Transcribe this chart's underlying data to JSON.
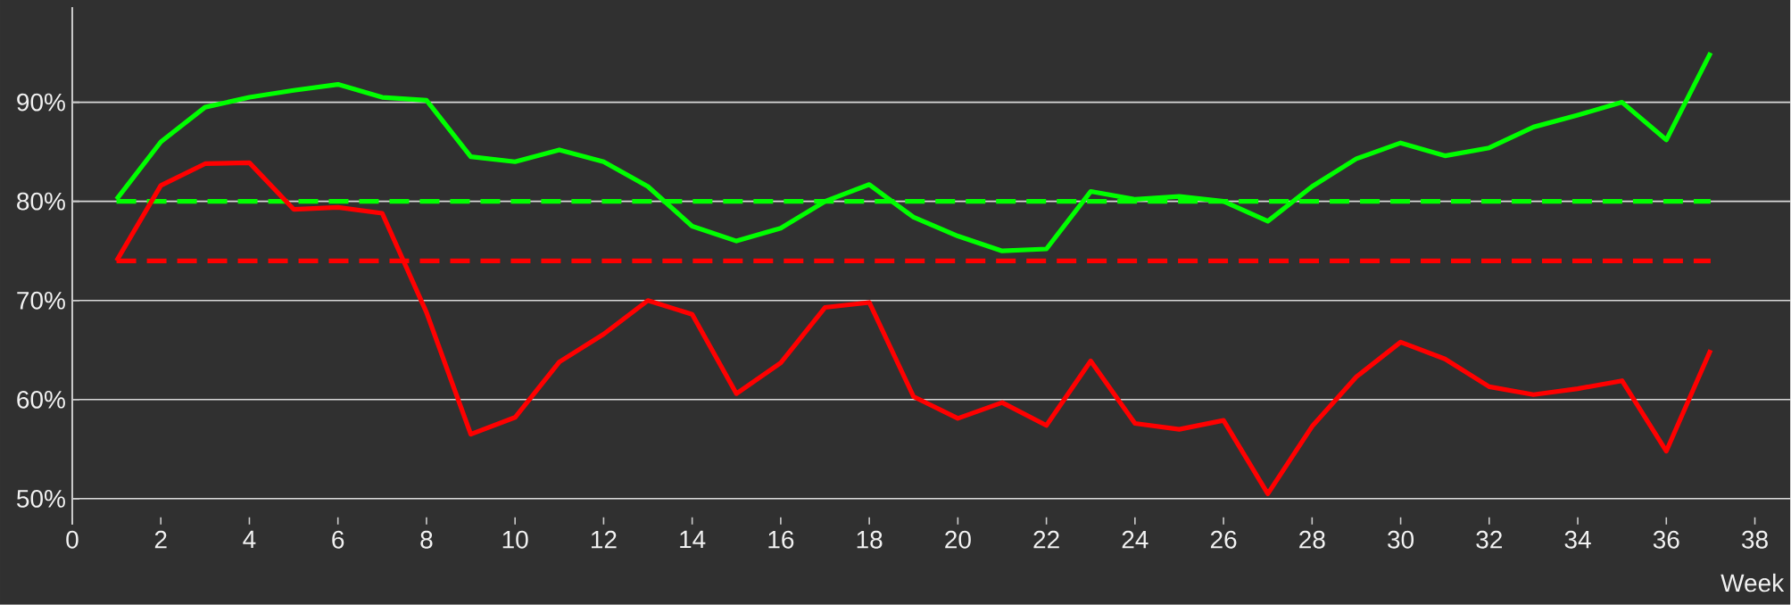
{
  "chart_data": {
    "type": "line",
    "xlabel": "Week",
    "x": [
      1,
      2,
      3,
      4,
      5,
      6,
      7,
      8,
      9,
      10,
      11,
      12,
      13,
      14,
      15,
      16,
      17,
      18,
      19,
      20,
      21,
      22,
      23,
      24,
      25,
      26,
      27,
      28,
      29,
      30,
      31,
      32,
      33,
      34,
      35,
      36,
      37
    ],
    "series": [
      {
        "color": "#00ff00",
        "values": [
          80.2,
          86,
          89.5,
          90.5,
          91.2,
          91.8,
          90.5,
          90.2,
          84.5,
          84,
          85.2,
          84,
          81.5,
          77.5,
          76,
          77.3,
          80,
          81.7,
          78.4,
          76.5,
          75,
          75.2,
          81,
          80.2,
          80.5,
          80,
          78,
          81.5,
          84.3,
          85.9,
          84.6,
          85.4,
          87.5,
          88.7,
          90,
          86.2,
          95
        ]
      },
      {
        "color": "#ff0000",
        "values": [
          74,
          81.6,
          83.8,
          83.9,
          79.2,
          79.4,
          78.8,
          68.8,
          56.5,
          58.2,
          63.8,
          66.6,
          70,
          68.6,
          60.6,
          63.7,
          69.3,
          69.8,
          60.3,
          58.1,
          59.7,
          57.4,
          63.9,
          57.6,
          57,
          57.9,
          50.5,
          57.3,
          62.3,
          65.8,
          64.1,
          61.3,
          60.5,
          61.1,
          61.9,
          54.8,
          65
        ]
      }
    ],
    "ref_lines": [
      {
        "axis": "y",
        "value": 80,
        "color": "#00ff00",
        "line_style": "dashed"
      },
      {
        "axis": "y",
        "value": 74,
        "color": "#ff0000",
        "line_style": "dashed"
      }
    ],
    "xlim": [
      0,
      38.8
    ],
    "ylim": [
      47.4,
      99.6
    ],
    "xticks": [
      0,
      2,
      4,
      6,
      8,
      10,
      12,
      14,
      16,
      18,
      20,
      22,
      24,
      26,
      28,
      30,
      32,
      34,
      36,
      38
    ],
    "yticks": [
      {
        "value": 50,
        "label": "50%"
      },
      {
        "value": 60,
        "label": "60%"
      },
      {
        "value": 70,
        "label": "70%"
      },
      {
        "value": 80,
        "label": "80%"
      },
      {
        "value": 90,
        "label": "90%"
      }
    ],
    "grid": "y"
  }
}
